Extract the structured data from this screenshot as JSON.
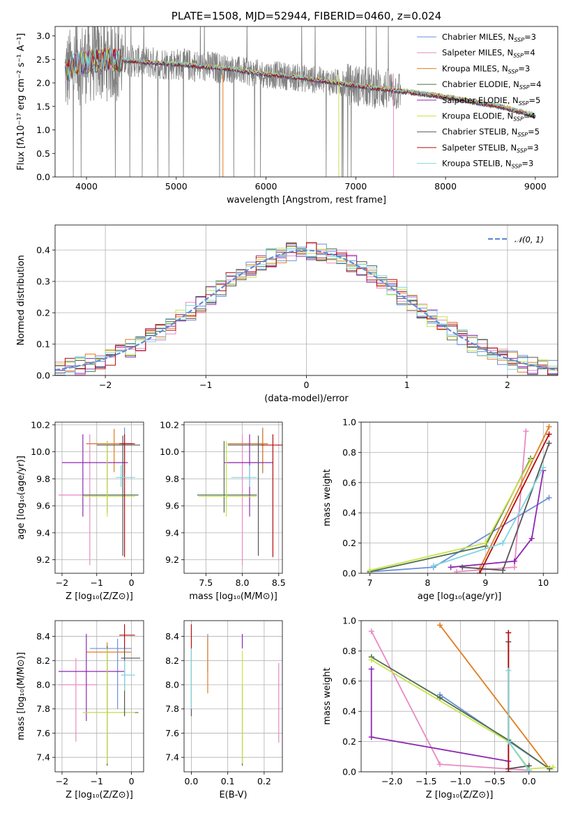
{
  "colors": {
    "Chabrier MILES": "#6a8fdc",
    "Salpeter MILES": "#e98ac4",
    "Kroupa MILES": "#e07d1c",
    "Chabrier ELODIE": "#4f6f4b",
    "Salpeter ELODIE": "#8e28b0",
    "Kroupa ELODIE": "#c7e34a",
    "Chabrier STELIB": "#555555",
    "Salpeter STELIB": "#b30d0d",
    "Kroupa STELIB": "#7fd6de"
  },
  "chart_data": [
    {
      "id": "spectrum",
      "type": "line",
      "title": "PLATE=1508, MJD=52944, FIBERID=0460, z=0.024",
      "xlabel": "wavelength [Angstrom, rest frame]",
      "ylabel": "Flux [fλ10⁻¹⁷ erg cm⁻² s⁻¹ A⁻¹]",
      "xlim": [
        3650,
        9250
      ],
      "ylim": [
        0,
        3.2
      ],
      "xticks": [
        "4000",
        "5000",
        "6000",
        "7000",
        "8000",
        "9000"
      ],
      "yticks": [
        "0.0",
        "0.5",
        "1.0",
        "1.5",
        "2.0",
        "2.5",
        "3.0"
      ],
      "grid": false,
      "legend_position": "right",
      "legend": [
        {
          "label": "Chabrier MILES, N",
          "sub": "SSP",
          "suffix": "=3"
        },
        {
          "label": "Salpeter MILES, N",
          "sub": "SSP",
          "suffix": "=4"
        },
        {
          "label": "Kroupa MILES, N",
          "sub": "SSP",
          "suffix": "=3"
        },
        {
          "label": "Chabrier ELODIE, N",
          "sub": "SSP",
          "suffix": "=4"
        },
        {
          "label": "Salpeter ELODIE, N",
          "sub": "SSP",
          "suffix": "=5"
        },
        {
          "label": "Kroupa ELODIE, N",
          "sub": "SSP",
          "suffix": "=4"
        },
        {
          "label": "Chabrier STELIB, N",
          "sub": "SSP",
          "suffix": "=5"
        },
        {
          "label": "Salpeter STELIB, N",
          "sub": "SSP",
          "suffix": "=3"
        },
        {
          "label": "Kroupa STELIB, N",
          "sub": "SSP",
          "suffix": "=3"
        }
      ],
      "continuum": {
        "x": [
          3750,
          3850,
          4000,
          4200,
          4500,
          4800,
          5000,
          5300,
          5600,
          5900,
          6200,
          6500,
          6800,
          7100,
          7400,
          7700,
          8000,
          8300,
          8600,
          9000
        ],
        "y": [
          2.15,
          2.35,
          2.45,
          2.5,
          2.47,
          2.42,
          2.4,
          2.35,
          2.3,
          2.2,
          2.15,
          2.08,
          2.0,
          1.92,
          1.85,
          1.78,
          1.7,
          1.6,
          1.5,
          1.3
        ]
      }
    },
    {
      "id": "residuals",
      "type": "histogram",
      "xlabel": "(data-model)/error",
      "ylabel": "Normed distribution",
      "xlim": [
        -2.5,
        2.5
      ],
      "ylim": [
        0,
        0.48
      ],
      "xticks": [
        "−2",
        "−1",
        "0",
        "1",
        "2"
      ],
      "yticks": [
        "0.0",
        "0.1",
        "0.2",
        "0.3",
        "0.4"
      ],
      "grid": true,
      "legend_position": "top-right",
      "legend_label": "𝒩(0, 1)",
      "bin_width": 0.1
    },
    {
      "id": "age_vs_Z",
      "type": "errorbar",
      "xlabel": "Z [log₁₀(Z/Z⊙)]",
      "ylabel": "age  [log₁₀(age/yr)]",
      "xlim": [
        -2.2,
        0.35
      ],
      "ylim": [
        9.1,
        10.22
      ],
      "xticks": [
        "−2",
        "−1",
        "0"
      ],
      "yticks": [
        "9.2",
        "9.4",
        "9.6",
        "9.8",
        "10.0",
        "10.2"
      ],
      "grid": true,
      "points": [
        {
          "model": "Chabrier MILES",
          "x": -0.2,
          "xlo": -1.3,
          "xhi": 0.05,
          "y": 10.06,
          "ylo": 9.84,
          "yhi": 10.18
        },
        {
          "model": "Salpeter MILES",
          "x": -1.2,
          "xlo": -2.1,
          "xhi": -0.2,
          "y": 9.68,
          "ylo": 9.16,
          "yhi": 10.13
        },
        {
          "model": "Kroupa MILES",
          "x": -0.5,
          "xlo": -1.3,
          "xhi": 0.02,
          "y": 10.06,
          "ylo": 9.85,
          "yhi": 10.17
        },
        {
          "model": "Chabrier ELODIE",
          "x": -0.7,
          "xlo": -1.4,
          "xhi": 0.2,
          "y": 9.68,
          "ylo": 9.55,
          "yhi": 10.08
        },
        {
          "model": "Salpeter ELODIE",
          "x": -1.4,
          "xlo": -2.0,
          "xhi": -0.1,
          "y": 9.92,
          "ylo": 9.52,
          "yhi": 10.13
        },
        {
          "model": "Kroupa ELODIE",
          "x": -0.7,
          "xlo": -1.4,
          "xhi": 0.1,
          "y": 9.67,
          "ylo": 9.52,
          "yhi": 10.08
        },
        {
          "model": "Chabrier STELIB",
          "x": -0.25,
          "xlo": -1.0,
          "xhi": 0.25,
          "y": 10.05,
          "ylo": 9.23,
          "yhi": 10.12
        },
        {
          "model": "Salpeter STELIB",
          "x": -0.2,
          "xlo": -0.35,
          "xhi": 0.1,
          "y": 10.06,
          "ylo": 9.22,
          "yhi": 10.13
        },
        {
          "model": "Kroupa STELIB",
          "x": -0.3,
          "xlo": -0.45,
          "xhi": 0.1,
          "y": 9.81,
          "ylo": 9.74,
          "yhi": 9.9
        }
      ]
    },
    {
      "id": "age_vs_mass",
      "type": "errorbar",
      "xlabel": "mass [log₁₀(M/M⊙)]",
      "ylabel": "",
      "xlim": [
        7.2,
        8.55
      ],
      "ylim": [
        9.1,
        10.22
      ],
      "xticks": [
        "7.5",
        "8.0",
        "8.5"
      ],
      "yticks": [
        "9.2",
        "9.4",
        "9.6",
        "9.8",
        "10.0",
        "10.2"
      ],
      "grid": true,
      "points": [
        {
          "model": "Chabrier MILES",
          "x": 8.28,
          "xlo": 7.8,
          "xhi": 8.35,
          "y": 10.06,
          "ylo": 9.84,
          "yhi": 10.18
        },
        {
          "model": "Salpeter MILES",
          "x": 8.0,
          "xlo": 7.8,
          "xhi": 8.2,
          "y": 9.92,
          "ylo": 9.16,
          "yhi": 10.13
        },
        {
          "model": "Kroupa MILES",
          "x": 8.28,
          "xlo": 7.8,
          "xhi": 8.35,
          "y": 10.06,
          "ylo": 9.85,
          "yhi": 10.17
        },
        {
          "model": "Chabrier ELODIE",
          "x": 7.75,
          "xlo": 7.38,
          "xhi": 8.2,
          "y": 9.68,
          "ylo": 9.55,
          "yhi": 10.08
        },
        {
          "model": "Salpeter ELODIE",
          "x": 8.1,
          "xlo": 7.75,
          "xhi": 8.42,
          "y": 9.92,
          "ylo": 9.52,
          "yhi": 10.13
        },
        {
          "model": "Kroupa ELODIE",
          "x": 7.78,
          "xlo": 7.4,
          "xhi": 8.2,
          "y": 9.67,
          "ylo": 9.52,
          "yhi": 10.08
        },
        {
          "model": "Chabrier STELIB",
          "x": 8.22,
          "xlo": 7.8,
          "xhi": 8.3,
          "y": 10.05,
          "ylo": 9.23,
          "yhi": 10.12
        },
        {
          "model": "Salpeter STELIB",
          "x": 8.42,
          "xlo": 8.25,
          "xhi": 8.55,
          "y": 10.05,
          "ylo": 9.22,
          "yhi": 10.13
        },
        {
          "model": "Kroupa STELIB",
          "x": 8.1,
          "xlo": 7.85,
          "xhi": 8.2,
          "y": 9.81,
          "ylo": 9.74,
          "yhi": 9.9
        }
      ]
    },
    {
      "id": "mass_weight_vs_age",
      "type": "line",
      "xlabel": "age  [log₁₀(age/yr)]",
      "ylabel": "mass weight",
      "xlim": [
        6.85,
        10.25
      ],
      "ylim": [
        0,
        1.0
      ],
      "xticks": [
        "7",
        "8",
        "9",
        "10"
      ],
      "yticks": [
        "0.0",
        "0.2",
        "0.4",
        "0.6",
        "0.8",
        "1.0"
      ],
      "grid": true,
      "series": [
        {
          "model": "Chabrier MILES",
          "x": [
            7.0,
            8.1,
            10.1
          ],
          "y": [
            0.01,
            0.04,
            0.5
          ]
        },
        {
          "model": "Salpeter MILES",
          "x": [
            8.5,
            9.5,
            9.7
          ],
          "y": [
            0.01,
            0.04,
            0.94
          ]
        },
        {
          "model": "Kroupa MILES",
          "x": [
            8.9,
            10.1
          ],
          "y": [
            0.03,
            0.97
          ]
        },
        {
          "model": "Chabrier ELODIE",
          "x": [
            7.0,
            9.0,
            9.78
          ],
          "y": [
            0.01,
            0.18,
            0.76
          ]
        },
        {
          "model": "Salpeter ELODIE",
          "x": [
            8.4,
            9.5,
            9.8,
            10.0
          ],
          "y": [
            0.04,
            0.08,
            0.23,
            0.68
          ]
        },
        {
          "model": "Kroupa ELODIE",
          "x": [
            7.0,
            9.0,
            9.78
          ],
          "y": [
            0.02,
            0.2,
            0.75
          ]
        },
        {
          "model": "Chabrier STELIB",
          "x": [
            8.6,
            9.3,
            10.1
          ],
          "y": [
            0.04,
            0.02,
            0.86
          ]
        },
        {
          "model": "Salpeter STELIB",
          "x": [
            8.9,
            10.1
          ],
          "y": [
            0.0,
            0.92
          ]
        },
        {
          "model": "Kroupa STELIB",
          "x": [
            8.1,
            9.3,
            10.0
          ],
          "y": [
            0.05,
            0.2,
            0.7
          ]
        }
      ]
    },
    {
      "id": "mass_vs_Z",
      "type": "errorbar",
      "xlabel": "Z [log₁₀(Z/Z⊙)]",
      "ylabel": "mass [log₁₀(M/M⊙)]",
      "xlim": [
        -2.2,
        0.35
      ],
      "ylim": [
        7.28,
        8.53
      ],
      "xticks": [
        "−2",
        "−1",
        "0"
      ],
      "yticks": [
        "7.4",
        "7.6",
        "7.8",
        "8.0",
        "8.2",
        "8.4"
      ],
      "grid": true,
      "points": [
        {
          "model": "Chabrier MILES",
          "x": -0.4,
          "xlo": -1.2,
          "xhi": 0.0,
          "y": 8.3,
          "ylo": 7.8,
          "yhi": 8.38
        },
        {
          "model": "Salpeter MILES",
          "x": -1.6,
          "xlo": -2.1,
          "xhi": -1.0,
          "y": 8.0,
          "ylo": 7.53,
          "yhi": 8.22
        },
        {
          "model": "Kroupa MILES",
          "x": -0.7,
          "xlo": -1.3,
          "xhi": 0.0,
          "y": 8.27,
          "ylo": 7.75,
          "yhi": 8.35
        },
        {
          "model": "Chabrier ELODIE",
          "x": -0.7,
          "xlo": -1.4,
          "xhi": 0.2,
          "y": 7.77,
          "ylo": 7.33,
          "yhi": 8.32
        },
        {
          "model": "Salpeter ELODIE",
          "x": -1.3,
          "xlo": -2.1,
          "xhi": -0.2,
          "y": 8.11,
          "ylo": 7.7,
          "yhi": 8.42
        },
        {
          "model": "Kroupa ELODIE",
          "x": -0.7,
          "xlo": -1.4,
          "xhi": 0.1,
          "y": 7.77,
          "ylo": 7.35,
          "yhi": 8.3
        },
        {
          "model": "Chabrier STELIB",
          "x": -0.2,
          "xlo": -0.3,
          "xhi": 0.25,
          "y": 8.22,
          "ylo": 7.74,
          "yhi": 8.3
        },
        {
          "model": "Salpeter STELIB",
          "x": -0.2,
          "xlo": -0.35,
          "xhi": 0.1,
          "y": 8.41,
          "ylo": 8.3,
          "yhi": 8.5
        },
        {
          "model": "Kroupa STELIB",
          "x": -0.2,
          "xlo": -0.3,
          "xhi": 0.1,
          "y": 8.08,
          "ylo": 7.95,
          "yhi": 8.2
        }
      ]
    },
    {
      "id": "mass_vs_ebv",
      "type": "errorbar",
      "xlabel": "E(B-V)",
      "ylabel": "",
      "xlim": [
        -0.02,
        0.25
      ],
      "ylim": [
        7.28,
        8.53
      ],
      "xticks": [
        "0.0",
        "0.1",
        "0.2"
      ],
      "yticks": [
        "7.4",
        "7.6",
        "7.8",
        "8.0",
        "8.2",
        "8.4"
      ],
      "grid": true,
      "points": [
        {
          "model": "Chabrier MILES",
          "x": 0.045,
          "y": 8.3,
          "ylo": 8.1,
          "yhi": 8.42
        },
        {
          "model": "Salpeter MILES",
          "x": 0.24,
          "y": 7.8,
          "ylo": 7.52,
          "yhi": 8.18
        },
        {
          "model": "Kroupa MILES",
          "x": 0.045,
          "y": 8.1,
          "ylo": 7.93,
          "yhi": 8.4
        },
        {
          "model": "Chabrier ELODIE",
          "x": 0.14,
          "y": 7.77,
          "ylo": 7.33,
          "yhi": 8.0
        },
        {
          "model": "Salpeter ELODIE",
          "x": 0.14,
          "y": 8.35,
          "ylo": 8.3,
          "yhi": 8.42
        },
        {
          "model": "Kroupa ELODIE",
          "x": 0.14,
          "y": 7.77,
          "ylo": 7.35,
          "yhi": 8.28
        },
        {
          "model": "Chabrier STELIB",
          "x": 0.0,
          "y": 7.9,
          "ylo": 7.74,
          "yhi": 8.3
        },
        {
          "model": "Salpeter STELIB",
          "x": 0.0,
          "y": 8.41,
          "ylo": 8.3,
          "yhi": 8.5
        },
        {
          "model": "Kroupa STELIB",
          "x": 0.0,
          "y": 8.08,
          "ylo": 7.8,
          "yhi": 8.3
        }
      ]
    },
    {
      "id": "mass_weight_vs_Z",
      "type": "line",
      "xlabel": "Z [log₁₀(Z/Z⊙)]",
      "ylabel": "mass weight",
      "xlim": [
        -2.45,
        0.42
      ],
      "ylim": [
        0,
        1.0
      ],
      "xticks": [
        "−2.0",
        "−1.5",
        "−1.0",
        "−0.5",
        "0.0"
      ],
      "yticks": [
        "0.0",
        "0.2",
        "0.4",
        "0.6",
        "0.8",
        "1.0"
      ],
      "grid": true,
      "series": [
        {
          "model": "Chabrier MILES",
          "x": [
            -1.3,
            0.3
          ],
          "y": [
            0.51,
            0.02
          ]
        },
        {
          "model": "Salpeter MILES",
          "x": [
            -2.3,
            -1.3,
            0.0
          ],
          "y": [
            0.93,
            0.05,
            0.01
          ]
        },
        {
          "model": "Kroupa MILES",
          "x": [
            -1.3,
            0.3
          ],
          "y": [
            0.97,
            0.02
          ]
        },
        {
          "model": "Chabrier ELODIE",
          "x": [
            -2.3,
            -1.3,
            -0.3,
            0.3
          ],
          "y": [
            0.76,
            0.49,
            0.21,
            0.02
          ]
        },
        {
          "model": "Salpeter ELODIE",
          "x": [
            -2.3,
            -2.3,
            -0.3,
            -0.3
          ],
          "y": [
            0.68,
            0.23,
            0.07,
            0.02
          ]
        },
        {
          "model": "Kroupa ELODIE",
          "x": [
            -2.3,
            -0.3,
            0.0,
            0.35
          ],
          "y": [
            0.74,
            0.2,
            0.02,
            0.03
          ]
        },
        {
          "model": "Chabrier STELIB",
          "x": [
            -0.3,
            -0.3,
            0.0
          ],
          "y": [
            0.86,
            0.02,
            0.04
          ]
        },
        {
          "model": "Salpeter STELIB",
          "x": [
            -0.3,
            -0.3
          ],
          "y": [
            0.92,
            0.0
          ]
        },
        {
          "model": "Kroupa STELIB",
          "x": [
            -0.3,
            -0.3,
            0.0
          ],
          "y": [
            0.67,
            0.2,
            0.01
          ]
        }
      ]
    }
  ]
}
